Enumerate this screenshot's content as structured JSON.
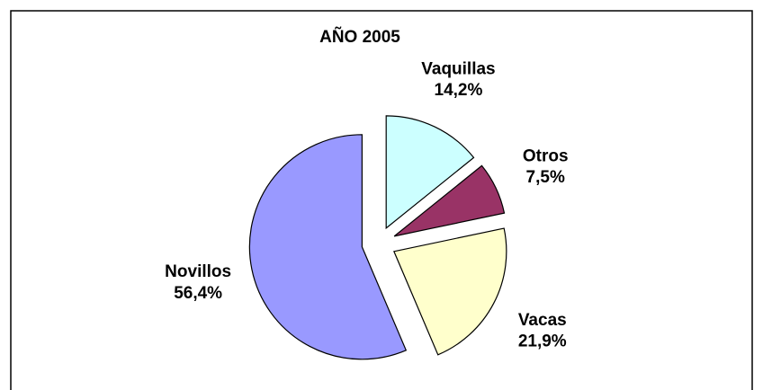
{
  "chart_data": {
    "type": "pie",
    "title": "AÑO 2005",
    "categories": [
      "Vaquillas",
      "Otros",
      "Vacas",
      "Novillos"
    ],
    "values": [
      14.2,
      7.5,
      21.9,
      56.4
    ],
    "value_labels": [
      "14,2%",
      "7,5%",
      "21,9%",
      "56,4%"
    ],
    "colors": [
      "#ccffff",
      "#993366",
      "#ffffcc",
      "#9999ff"
    ],
    "exploded": true
  }
}
